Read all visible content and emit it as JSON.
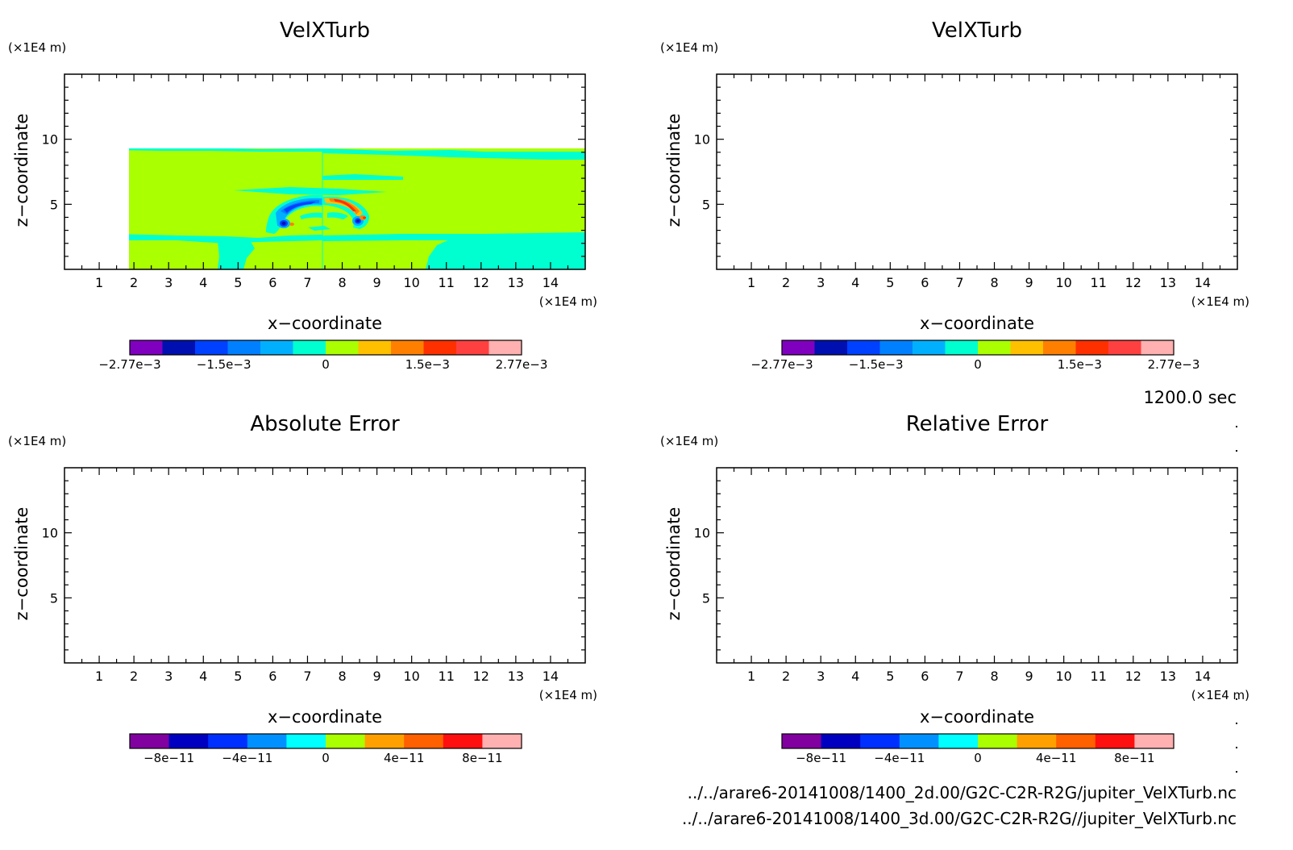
{
  "time_label": "1200.0 sec",
  "footer": {
    "line1": "../../arare6-20141008/1400_2d.00/G2C-C2R-R2G/jupiter_VelXTurb.nc",
    "line2": "../../arare6-20141008/1400_3d.00/G2C-C2R-R2G//jupiter_VelXTurb.nc"
  },
  "colors": {
    "field_background": "#aaff00",
    "negative_band": "#00ffd0",
    "frame": "#000000"
  },
  "chart_data": [
    {
      "type": "heatmap",
      "title": "VelXTurb",
      "xlabel": "x−coordinate",
      "ylabel": "z−coordinate",
      "x_unit": "(×1E4 m)",
      "y_unit": "(×1E4 m)",
      "xlim": [
        0,
        15
      ],
      "ylim": [
        0,
        15
      ],
      "x_ticks": [
        "1",
        "2",
        "3",
        "4",
        "5",
        "6",
        "7",
        "8",
        "9",
        "10",
        "11",
        "12",
        "13",
        "14"
      ],
      "y_ticks": [
        "5",
        "10"
      ],
      "colorbar": {
        "colors": [
          "#8000c0",
          "#0010b0",
          "#0040ff",
          "#0080ff",
          "#00b0ff",
          "#00ffd0",
          "#aaff00",
          "#ffc000",
          "#ff8000",
          "#ff3000",
          "#ff4040",
          "#ffb0b0"
        ],
        "labels": [
          "−2.77e−3",
          "−1.5e−3",
          "0",
          "1.5e−3",
          "2.77e−3"
        ]
      }
    },
    {
      "type": "heatmap",
      "title": "VelXTurb",
      "xlabel": "x−coordinate",
      "ylabel": "z−coordinate",
      "x_unit": "(×1E4 m)",
      "y_unit": "(×1E4 m)",
      "xlim": [
        0,
        15
      ],
      "ylim": [
        0,
        15
      ],
      "x_ticks": [
        "1",
        "2",
        "3",
        "4",
        "5",
        "6",
        "7",
        "8",
        "9",
        "10",
        "11",
        "12",
        "13",
        "14"
      ],
      "y_ticks": [
        "5",
        "10"
      ],
      "colorbar": {
        "colors": [
          "#8000c0",
          "#0010b0",
          "#0040ff",
          "#0080ff",
          "#00b0ff",
          "#00ffd0",
          "#aaff00",
          "#ffc000",
          "#ff8000",
          "#ff3000",
          "#ff4040",
          "#ffb0b0"
        ],
        "labels": [
          "−2.77e−3",
          "−1.5e−3",
          "0",
          "1.5e−3",
          "2.77e−3"
        ]
      }
    },
    {
      "type": "heatmap",
      "title": "Absolute Error",
      "xlabel": "x−coordinate",
      "ylabel": "z−coordinate",
      "x_unit": "(×1E4 m)",
      "y_unit": "(×1E4 m)",
      "xlim": [
        0,
        15
      ],
      "ylim": [
        0,
        15
      ],
      "x_ticks": [
        "1",
        "2",
        "3",
        "4",
        "5",
        "6",
        "7",
        "8",
        "9",
        "10",
        "11",
        "12",
        "13",
        "14"
      ],
      "y_ticks": [
        "5",
        "10"
      ],
      "colorbar": {
        "colors": [
          "#8000a0",
          "#0000c0",
          "#0030ff",
          "#0090ff",
          "#00ffff",
          "#aaff00",
          "#ffa000",
          "#ff6000",
          "#ff1010",
          "#ffb0b0"
        ],
        "labels": [
          "−8e−11",
          "−4e−11",
          "0",
          "4e−11",
          "8e−11"
        ]
      }
    },
    {
      "type": "heatmap",
      "title": "Relative Error",
      "xlabel": "x−coordinate",
      "ylabel": "z−coordinate",
      "x_unit": "(×1E4 m)",
      "y_unit": "(×1E4 m)",
      "xlim": [
        0,
        15
      ],
      "ylim": [
        0,
        15
      ],
      "x_ticks": [
        "1",
        "2",
        "3",
        "4",
        "5",
        "6",
        "7",
        "8",
        "9",
        "10",
        "11",
        "12",
        "13",
        "14"
      ],
      "y_ticks": [
        "5",
        "10"
      ],
      "colorbar": {
        "colors": [
          "#8000a0",
          "#0000c0",
          "#0030ff",
          "#0090ff",
          "#00ffff",
          "#aaff00",
          "#ffa000",
          "#ff6000",
          "#ff1010",
          "#ffb0b0"
        ],
        "labels": [
          "−8e−11",
          "−4e−11",
          "0",
          "4e−11",
          "8e−11"
        ]
      }
    }
  ]
}
